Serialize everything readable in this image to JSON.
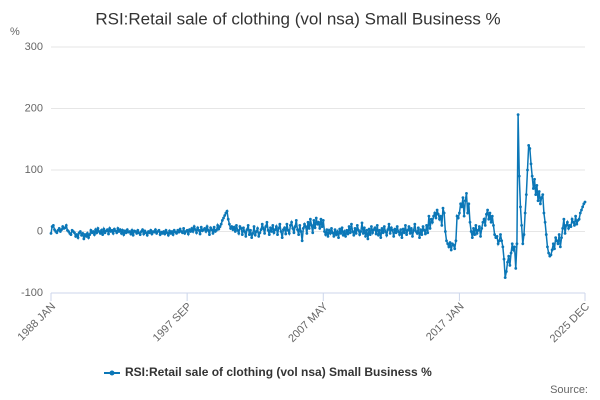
{
  "chart_data": {
    "type": "line",
    "title": "RSI:Retail sale of clothing (vol nsa) Small Business %",
    "y_unit": "%",
    "source": "Source:",
    "categories": [
      "1988 JAN",
      null,
      null,
      null,
      null,
      null,
      null,
      null,
      null,
      null,
      null,
      null,
      null,
      null,
      null,
      null,
      null,
      null,
      null,
      null,
      null,
      null,
      null,
      null,
      null,
      null,
      null,
      null,
      null,
      null,
      null,
      null,
      null,
      null,
      null,
      null,
      null,
      null,
      null,
      null,
      null,
      null,
      null,
      null,
      null,
      null,
      null,
      null,
      null,
      null,
      null,
      null,
      null,
      null,
      null,
      null,
      null,
      null,
      null,
      null,
      null,
      null,
      null,
      null,
      null,
      null,
      null,
      null,
      null,
      null,
      null,
      null,
      null,
      null,
      null,
      null,
      null,
      null,
      null,
      null,
      null,
      null,
      null,
      null,
      null,
      null,
      null,
      null,
      null,
      null,
      null,
      null,
      null,
      null,
      null,
      null,
      null,
      null,
      null,
      null,
      null,
      null,
      null,
      null,
      null,
      null,
      null,
      null,
      null,
      null,
      null,
      null,
      null,
      null,
      null,
      null,
      "1997 SEP",
      null,
      null,
      null,
      null,
      null,
      null,
      null,
      null,
      null,
      null,
      null,
      null,
      null,
      null,
      null,
      null,
      null,
      null,
      null,
      null,
      null,
      null,
      null,
      null,
      null,
      null,
      null,
      null,
      null,
      null,
      null,
      null,
      null,
      null,
      null,
      null,
      null,
      null,
      null,
      null,
      null,
      null,
      null,
      null,
      null,
      null,
      null,
      null,
      null,
      null,
      null,
      null,
      null,
      null,
      null,
      null,
      null,
      null,
      null,
      null,
      null,
      null,
      null,
      null,
      null,
      null,
      null,
      null,
      null,
      null,
      null,
      null,
      null,
      null,
      null,
      null,
      null,
      null,
      null,
      null,
      null,
      null,
      null,
      null,
      null,
      null,
      null,
      null,
      null,
      null,
      null,
      null,
      null,
      null,
      null,
      null,
      null,
      null,
      null,
      null,
      null,
      null,
      null,
      null,
      null,
      null,
      null,
      null,
      null,
      null,
      null,
      null,
      null,
      null,
      null,
      "2007 MAY",
      null,
      null,
      null,
      null,
      null,
      null,
      null,
      null,
      null,
      null,
      null,
      null,
      null,
      null,
      null,
      null,
      null,
      null,
      null,
      null,
      null,
      null,
      null,
      null,
      null,
      null,
      null,
      null,
      null,
      null,
      null,
      null,
      null,
      null,
      null,
      null,
      null,
      null,
      null,
      null,
      null,
      null,
      null,
      null,
      null,
      null,
      null,
      null,
      null,
      null,
      null,
      null,
      null,
      null,
      null,
      null,
      null,
      null,
      null,
      null,
      null,
      null,
      null,
      null,
      null,
      null,
      null,
      null,
      null,
      null,
      null,
      null,
      null,
      null,
      null,
      null,
      null,
      null,
      null,
      null,
      null,
      null,
      null,
      null,
      null,
      null,
      null,
      null,
      null,
      null,
      null,
      null,
      null,
      null,
      null,
      null,
      null,
      null,
      null,
      null,
      null,
      null,
      null,
      null,
      null,
      null,
      null,
      null,
      null,
      null,
      null,
      null,
      null,
      null,
      null,
      "2017 JAN",
      null,
      null,
      null,
      null,
      null,
      null,
      null,
      null,
      null,
      null,
      null,
      null,
      null,
      null,
      null,
      null,
      null,
      null,
      null,
      null,
      null,
      null,
      null,
      null,
      null,
      null,
      null,
      null,
      null,
      null,
      null,
      null,
      null,
      null,
      null,
      null,
      null,
      null,
      null,
      null,
      null,
      null,
      null,
      null,
      null,
      null,
      null,
      null,
      null,
      null,
      null,
      null,
      null,
      null,
      null,
      null,
      null,
      null,
      null,
      null,
      null,
      null,
      null,
      null,
      null,
      null,
      null,
      null,
      null,
      null,
      null,
      null,
      null,
      null,
      null,
      null,
      null,
      null,
      null,
      null,
      null,
      null,
      null,
      null,
      null,
      null,
      null,
      null,
      null,
      null,
      null,
      null,
      null,
      null,
      null,
      null,
      null,
      null,
      null,
      null,
      null,
      null,
      null,
      null,
      null,
      null,
      "2025 DEC"
    ],
    "series": [
      {
        "name": "RSI:Retail sale of clothing (vol nsa) Small Business %",
        "color": "#0b77b7",
        "values": [
          -3,
          8,
          10,
          3,
          0,
          -2,
          2,
          5,
          0,
          3,
          8,
          5,
          6,
          10,
          2,
          0,
          -3,
          -5,
          2,
          0,
          -2,
          -8,
          -5,
          -10,
          -2,
          0,
          -6,
          -3,
          -12,
          -5,
          -8,
          -3,
          -10,
          -5,
          2,
          -2,
          0,
          -5,
          3,
          -2,
          5,
          0,
          -3,
          2,
          -5,
          4,
          -2,
          1,
          3,
          -4,
          5,
          0,
          2,
          -3,
          4,
          1,
          -2,
          5,
          0,
          3,
          -3,
          2,
          -5,
          1,
          -2,
          3,
          -1,
          0,
          -4,
          2,
          -6,
          1,
          0,
          -3,
          2,
          -2,
          -5,
          0,
          3,
          -4,
          1,
          -2,
          -6,
          0,
          -2,
          2,
          -4,
          0,
          -1,
          3,
          -3,
          0,
          2,
          -5,
          -1,
          -3,
          0,
          -4,
          2,
          -2,
          -6,
          1,
          -3,
          0,
          -5,
          2,
          -1,
          -3,
          2,
          -1,
          4,
          0,
          -2,
          5,
          -3,
          0,
          2,
          -4,
          3,
          0,
          5,
          0,
          8,
          3,
          -2,
          6,
          2,
          -4,
          7,
          1,
          3,
          5,
          0,
          8,
          2,
          -5,
          6,
          3,
          -3,
          7,
          0,
          2,
          10,
          4,
          8,
          12,
          18,
          22,
          26,
          30,
          33,
          20,
          12,
          5,
          8,
          3,
          7,
          0,
          10,
          2,
          -3,
          8,
          5,
          -5,
          6,
          0,
          -8,
          3,
          10,
          -5,
          2,
          -10,
          -3,
          8,
          -6,
          0,
          5,
          -8,
          -2,
          3,
          12,
          5,
          -3,
          8,
          15,
          2,
          -5,
          6,
          0,
          10,
          -2,
          3,
          8,
          -5,
          5,
          12,
          0,
          -10,
          3,
          6,
          -4,
          12,
          2,
          -3,
          10,
          15,
          5,
          -2,
          8,
          18,
          3,
          -5,
          10,
          0,
          -15,
          5,
          12,
          8,
          -3,
          15,
          5,
          20,
          10,
          -2,
          18,
          6,
          22,
          12,
          15,
          5,
          20,
          8,
          18,
          0,
          -5,
          3,
          -8,
          2,
          -3,
          5,
          -2,
          -8,
          3,
          -5,
          0,
          -10,
          4,
          -3,
          6,
          -6,
          0,
          -8,
          2,
          -4,
          8,
          -2,
          12,
          0,
          -6,
          5,
          -3,
          10,
          2,
          -5,
          0,
          14,
          -3,
          6,
          -8,
          2,
          -12,
          4,
          -5,
          8,
          -2,
          3,
          6,
          -4,
          10,
          -6,
          2,
          -10,
          5,
          -2,
          8,
          0,
          -6,
          3,
          12,
          -3,
          6,
          2,
          -8,
          4,
          -2,
          8,
          0,
          -5,
          3,
          -10,
          4,
          -2,
          10,
          -5,
          2,
          8,
          -3,
          5,
          -8,
          2,
          12,
          0,
          -3,
          6,
          -10,
          3,
          -5,
          8,
          2,
          -4,
          10,
          -2,
          25,
          5,
          20,
          15,
          25,
          30,
          22,
          35,
          28,
          20,
          25,
          10,
          38,
          30,
          0,
          -15,
          -20,
          -25,
          -18,
          -30,
          -20,
          -22,
          -28,
          -15,
          25,
          22,
          30,
          45,
          40,
          55,
          25,
          50,
          62,
          30,
          45,
          15,
          0,
          -10,
          5,
          -5,
          10,
          -3,
          2,
          8,
          -8,
          5,
          15,
          20,
          10,
          28,
          35,
          20,
          30,
          15,
          25,
          10,
          -5,
          -10,
          -8,
          -20,
          -15,
          -5,
          -15,
          -25,
          -45,
          -75,
          -65,
          -50,
          -40,
          -55,
          -35,
          -20,
          -30,
          -25,
          -60,
          -20,
          190,
          90,
          40,
          10,
          -20,
          -5,
          30,
          60,
          100,
          140,
          135,
          110,
          90,
          70,
          85,
          60,
          75,
          50,
          65,
          45,
          55,
          60,
          30,
          15,
          -5,
          -25,
          -35,
          -40,
          -38,
          -30,
          -20,
          -28,
          -10,
          -15,
          -20,
          -5,
          -25,
          -10,
          5,
          20,
          -3,
          10,
          15,
          5,
          10,
          8,
          20,
          15,
          10,
          25,
          12,
          18,
          20,
          30,
          35,
          40,
          45,
          48
        ]
      }
    ],
    "ylim": [
      -100,
      300
    ],
    "yticks": [
      -100,
      0,
      100,
      200,
      300
    ],
    "grid": true,
    "legend": "bottom"
  }
}
